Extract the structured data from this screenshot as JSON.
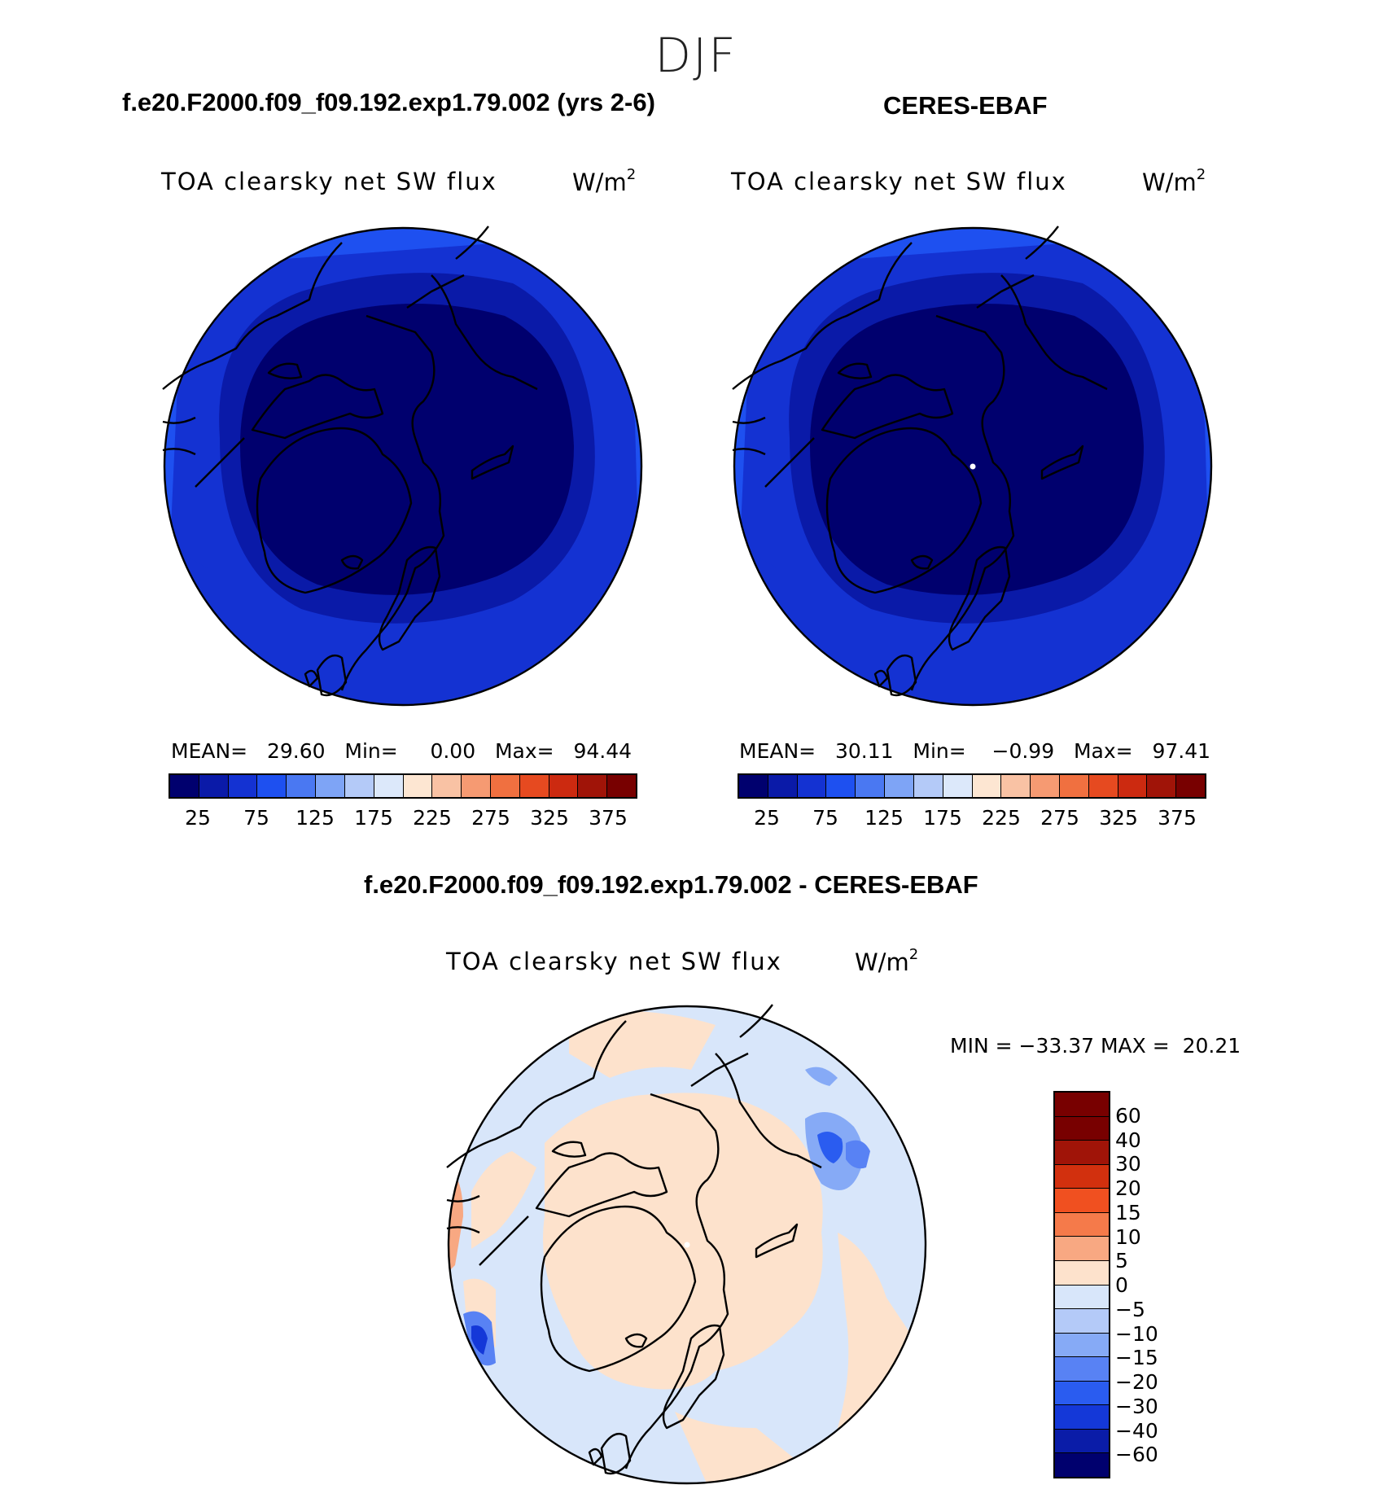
{
  "season": "DJF",
  "panels": {
    "model": {
      "case": "f.e20.F2000.f09_f09.192.exp1.79.002 (yrs 2-6)",
      "title": "TOA clearsky net SW flux",
      "unit": "W/m",
      "unit_exp": "2",
      "mean_label": "MEAN=",
      "mean": "29.60",
      "min_label": "Min=",
      "min": "0.00",
      "max_label": "Max=",
      "max": "94.44"
    },
    "obs": {
      "case": "CERES-EBAF",
      "title": "TOA clearsky net SW flux",
      "unit": "W/m",
      "unit_exp": "2",
      "mean_label": "MEAN=",
      "mean": "30.11",
      "min_label": "Min=",
      "min": "−0.99",
      "max_label": "Max=",
      "max": "97.41"
    },
    "diff": {
      "case": "f.e20.F2000.f09_f09.192.exp1.79.002 - CERES-EBAF",
      "title": "TOA clearsky net SW flux",
      "unit": "W/m",
      "unit_exp": "2",
      "min_label": "MIN =",
      "min": "−33.37",
      "max_label": "MAX =",
      "max": "20.21"
    }
  },
  "colorbar_main": {
    "colors": [
      "#00006e",
      "#0a1aa8",
      "#1432d2",
      "#1e50f0",
      "#4a78f2",
      "#7ea4f6",
      "#b4caf8",
      "#dce8fa",
      "#fde6d2",
      "#f9c2a4",
      "#f69a72",
      "#f07040",
      "#e64a20",
      "#cc2a10",
      "#a01408",
      "#780000"
    ],
    "ticks": [
      "25",
      "75",
      "125",
      "175",
      "225",
      "275",
      "325",
      "375"
    ]
  },
  "colorbar_diff": {
    "colors": [
      "#780000",
      "#a01408",
      "#d2300e",
      "#f05020",
      "#f57a4a",
      "#f8a882",
      "#fde2cc",
      "#d8e6fa",
      "#b4caf8",
      "#86aaf6",
      "#5882f4",
      "#2a5cf0",
      "#1438d8",
      "#0a1ca8",
      "#00006e"
    ],
    "ticks": [
      "60",
      "40",
      "30",
      "20",
      "15",
      "10",
      "5",
      "0",
      "−5",
      "−10",
      "−15",
      "−20",
      "−30",
      "−40",
      "−60"
    ]
  }
}
